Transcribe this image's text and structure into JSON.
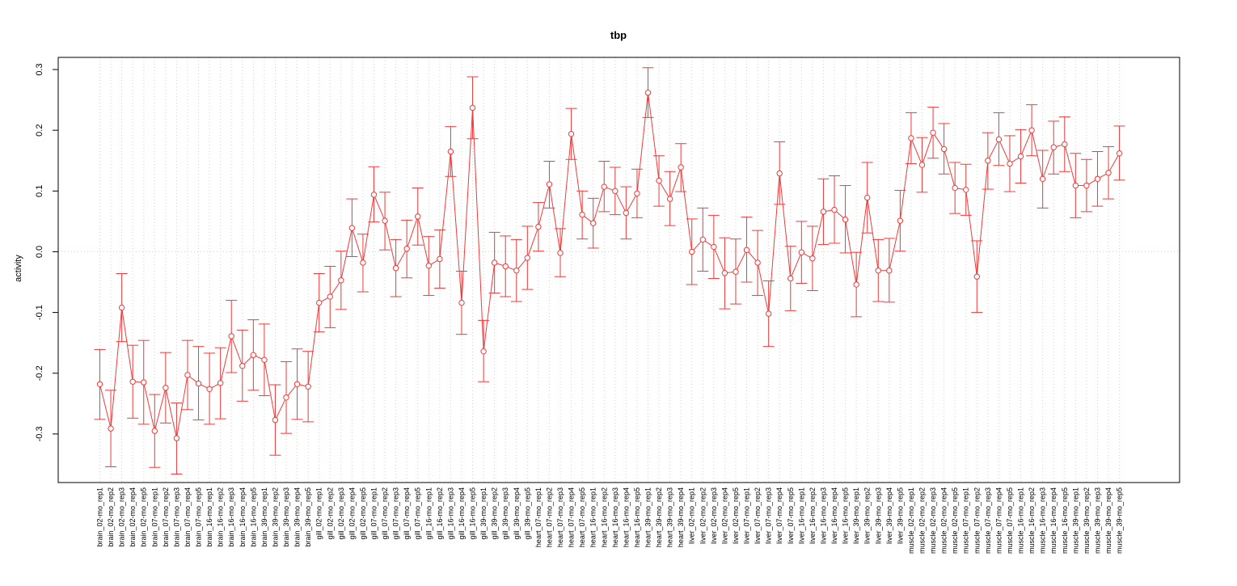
{
  "chart_data": {
    "type": "line",
    "title": "tbp",
    "xlabel": "",
    "ylabel": "activity",
    "ylim": [
      -0.38,
      0.32
    ],
    "yticks": [
      -0.3,
      -0.2,
      -0.1,
      0.0,
      0.1,
      0.2,
      0.3
    ],
    "ytick_labels": [
      "-0.3",
      "-0.2",
      "-0.1",
      "0.0",
      "0.1",
      "0.2",
      "0.3"
    ],
    "grid": true,
    "colors": {
      "series": "#ee3b3b",
      "grid": "#d3d3d3",
      "axis": "#000000"
    },
    "categories": [
      "brain_02-mo_rep1",
      "brain_02-mo_rep2",
      "brain_02-mo_rep3",
      "brain_02-mo_rep4",
      "brain_02-mo_rep5",
      "brain_07-mo_rep1",
      "brain_07-mo_rep2",
      "brain_07-mo_rep3",
      "brain_07-mo_rep4",
      "brain_07-mo_rep5",
      "brain_16-mo_rep1",
      "brain_16-mo_rep2",
      "brain_16-mo_rep3",
      "brain_16-mo_rep4",
      "brain_16-mo_rep5",
      "brain_39-mo_rep1",
      "brain_39-mo_rep2",
      "brain_39-mo_rep3",
      "brain_39-mo_rep4",
      "brain_39-mo_rep5",
      "gill_02-mo_rep1",
      "gill_02-mo_rep2",
      "gill_02-mo_rep3",
      "gill_02-mo_rep4",
      "gill_02-mo_rep5",
      "gill_07-mo_rep1",
      "gill_07-mo_rep2",
      "gill_07-mo_rep3",
      "gill_07-mo_rep4",
      "gill_07-mo_rep5",
      "gill_16-mo_rep1",
      "gill_16-mo_rep2",
      "gill_16-mo_rep3",
      "gill_16-mo_rep4",
      "gill_16-mo_rep5",
      "gill_39-mo_rep1",
      "gill_39-mo_rep2",
      "gill_39-mo_rep3",
      "gill_39-mo_rep4",
      "gill_39-mo_rep5",
      "heart_07-mo_rep1",
      "heart_07-mo_rep2",
      "heart_07-mo_rep3",
      "heart_07-mo_rep4",
      "heart_07-mo_rep5",
      "heart_16-mo_rep1",
      "heart_16-mo_rep2",
      "heart_16-mo_rep3",
      "heart_16-mo_rep4",
      "heart_16-mo_rep5",
      "heart_39-mo_rep1",
      "heart_39-mo_rep2",
      "heart_39-mo_rep3",
      "heart_39-mo_rep4",
      "liver_02-mo_rep1",
      "liver_02-mo_rep2",
      "liver_02-mo_rep3",
      "liver_02-mo_rep4",
      "liver_02-mo_rep5",
      "liver_07-mo_rep1",
      "liver_07-mo_rep2",
      "liver_07-mo_rep3",
      "liver_07-mo_rep4",
      "liver_07-mo_rep5",
      "liver_16-mo_rep1",
      "liver_16-mo_rep2",
      "liver_16-mo_rep3",
      "liver_16-mo_rep4",
      "liver_16-mo_rep5",
      "liver_39-mo_rep1",
      "liver_39-mo_rep2",
      "liver_39-mo_rep3",
      "liver_39-mo_rep4",
      "liver_39-mo_rep5",
      "muscle_02-mo_rep1",
      "muscle_02-mo_rep2",
      "muscle_02-mo_rep3",
      "muscle_02-mo_rep4",
      "muscle_02-mo_rep5",
      "muscle_07-mo_rep1",
      "muscle_07-mo_rep2",
      "muscle_07-mo_rep3",
      "muscle_07-mo_rep4",
      "muscle_07-mo_rep5",
      "muscle_16-mo_rep1",
      "muscle_16-mo_rep2",
      "muscle_16-mo_rep3",
      "muscle_16-mo_rep4",
      "muscle_16-mo_rep5",
      "muscle_39-mo_rep1",
      "muscle_39-mo_rep2",
      "muscle_39-mo_rep3",
      "muscle_39-mo_rep4",
      "muscle_39-mo_rep5"
    ],
    "series": [
      {
        "values": [
          -0.218,
          -0.291,
          -0.092,
          -0.214,
          -0.215,
          -0.295,
          -0.224,
          -0.307,
          -0.203,
          -0.217,
          -0.226,
          -0.216,
          -0.139,
          -0.188,
          -0.17,
          -0.178,
          -0.277,
          -0.24,
          -0.218,
          -0.222,
          -0.084,
          -0.074,
          -0.047,
          0.039,
          -0.018,
          0.094,
          0.051,
          -0.027,
          0.005,
          0.058,
          -0.023,
          -0.012,
          0.165,
          -0.084,
          0.237,
          -0.164,
          -0.018,
          -0.024,
          -0.031,
          -0.01,
          0.041,
          0.111,
          -0.002,
          0.194,
          0.061,
          0.047,
          0.107,
          0.1,
          0.064,
          0.096,
          0.262,
          0.117,
          0.087,
          0.139,
          0.0,
          0.02,
          0.008,
          -0.035,
          -0.033,
          0.003,
          -0.018,
          -0.102,
          0.129,
          -0.044,
          -0.001,
          -0.011,
          0.066,
          0.069,
          0.053,
          -0.054,
          0.089,
          -0.031,
          -0.031,
          0.051,
          0.187,
          0.143,
          0.196,
          0.169,
          0.105,
          0.102,
          -0.041,
          0.15,
          0.185,
          0.145,
          0.157,
          0.2,
          0.12,
          0.172,
          0.177,
          0.109,
          0.109,
          0.12,
          0.13,
          0.162
        ],
        "lower": [
          -0.276,
          -0.354,
          -0.148,
          -0.274,
          -0.284,
          -0.355,
          -0.282,
          -0.366,
          -0.26,
          -0.277,
          -0.284,
          -0.275,
          -0.199,
          -0.246,
          -0.228,
          -0.237,
          -0.335,
          -0.299,
          -0.276,
          -0.28,
          -0.132,
          -0.125,
          -0.095,
          -0.008,
          -0.066,
          0.049,
          0.003,
          -0.074,
          -0.043,
          0.011,
          -0.072,
          -0.06,
          0.124,
          -0.136,
          0.186,
          -0.214,
          -0.068,
          -0.074,
          -0.082,
          -0.062,
          0.001,
          0.072,
          -0.041,
          0.152,
          0.021,
          0.006,
          0.066,
          0.061,
          0.021,
          0.056,
          0.221,
          0.075,
          0.043,
          0.099,
          -0.054,
          -0.032,
          -0.044,
          -0.094,
          -0.086,
          -0.05,
          -0.072,
          -0.156,
          0.078,
          -0.097,
          -0.052,
          -0.064,
          0.012,
          0.014,
          -0.002,
          -0.107,
          0.031,
          -0.082,
          -0.083,
          0.001,
          0.145,
          0.098,
          0.154,
          0.128,
          0.063,
          0.06,
          -0.1,
          0.103,
          0.142,
          0.099,
          0.113,
          0.158,
          0.072,
          0.128,
          0.132,
          0.056,
          0.066,
          0.075,
          0.087,
          0.118
        ],
        "upper": [
          -0.161,
          -0.228,
          -0.036,
          -0.154,
          -0.146,
          -0.235,
          -0.166,
          -0.249,
          -0.146,
          -0.156,
          -0.167,
          -0.158,
          -0.08,
          -0.129,
          -0.112,
          -0.119,
          -0.219,
          -0.181,
          -0.16,
          -0.164,
          -0.036,
          -0.024,
          0.001,
          0.087,
          0.029,
          0.14,
          0.098,
          0.02,
          0.052,
          0.105,
          0.025,
          0.036,
          0.206,
          -0.032,
          0.288,
          -0.113,
          0.032,
          0.026,
          0.02,
          0.042,
          0.081,
          0.149,
          0.038,
          0.236,
          0.1,
          0.088,
          0.149,
          0.139,
          0.107,
          0.136,
          0.303,
          0.158,
          0.132,
          0.178,
          0.054,
          0.072,
          0.06,
          0.023,
          0.021,
          0.057,
          0.035,
          -0.048,
          0.181,
          0.009,
          0.05,
          0.042,
          0.12,
          0.125,
          0.109,
          -0.001,
          0.147,
          0.02,
          0.022,
          0.101,
          0.229,
          0.188,
          0.238,
          0.211,
          0.147,
          0.144,
          0.018,
          0.196,
          0.229,
          0.191,
          0.201,
          0.242,
          0.167,
          0.215,
          0.222,
          0.162,
          0.152,
          0.165,
          0.173,
          0.207
        ]
      }
    ]
  }
}
